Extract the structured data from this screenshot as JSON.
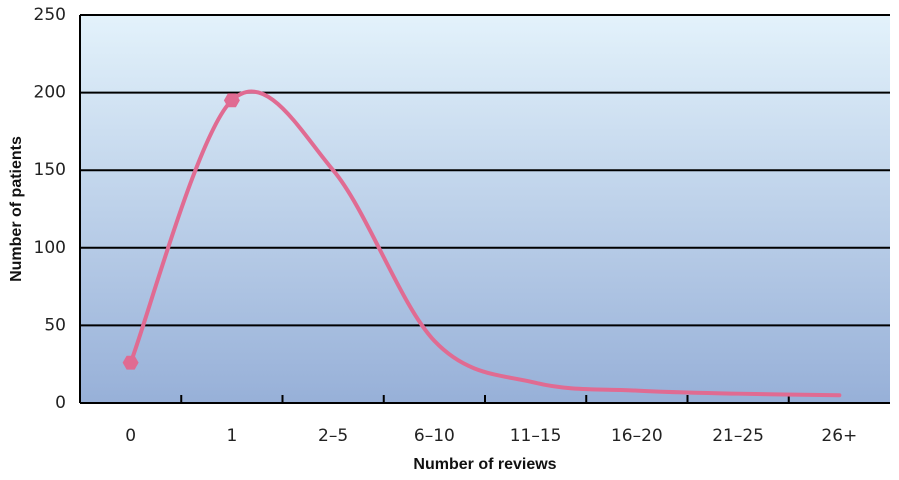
{
  "chart_data": {
    "type": "line",
    "x_label": "Number of reviews",
    "y_label": "Number of patients",
    "categories": [
      "0",
      "1",
      "2–5",
      "6–10",
      "11–15",
      "16–20",
      "21–25",
      "26+"
    ],
    "series": [
      {
        "name": "Patients",
        "color": "#e06b92",
        "values": [
          26,
          195,
          150,
          40,
          13,
          8,
          6,
          5
        ]
      }
    ],
    "marker_categories": [
      "0",
      "1"
    ],
    "ylim": [
      0,
      250
    ],
    "yticks": [
      0,
      50,
      100,
      150,
      200,
      250
    ],
    "grid": true,
    "smooth": true
  }
}
